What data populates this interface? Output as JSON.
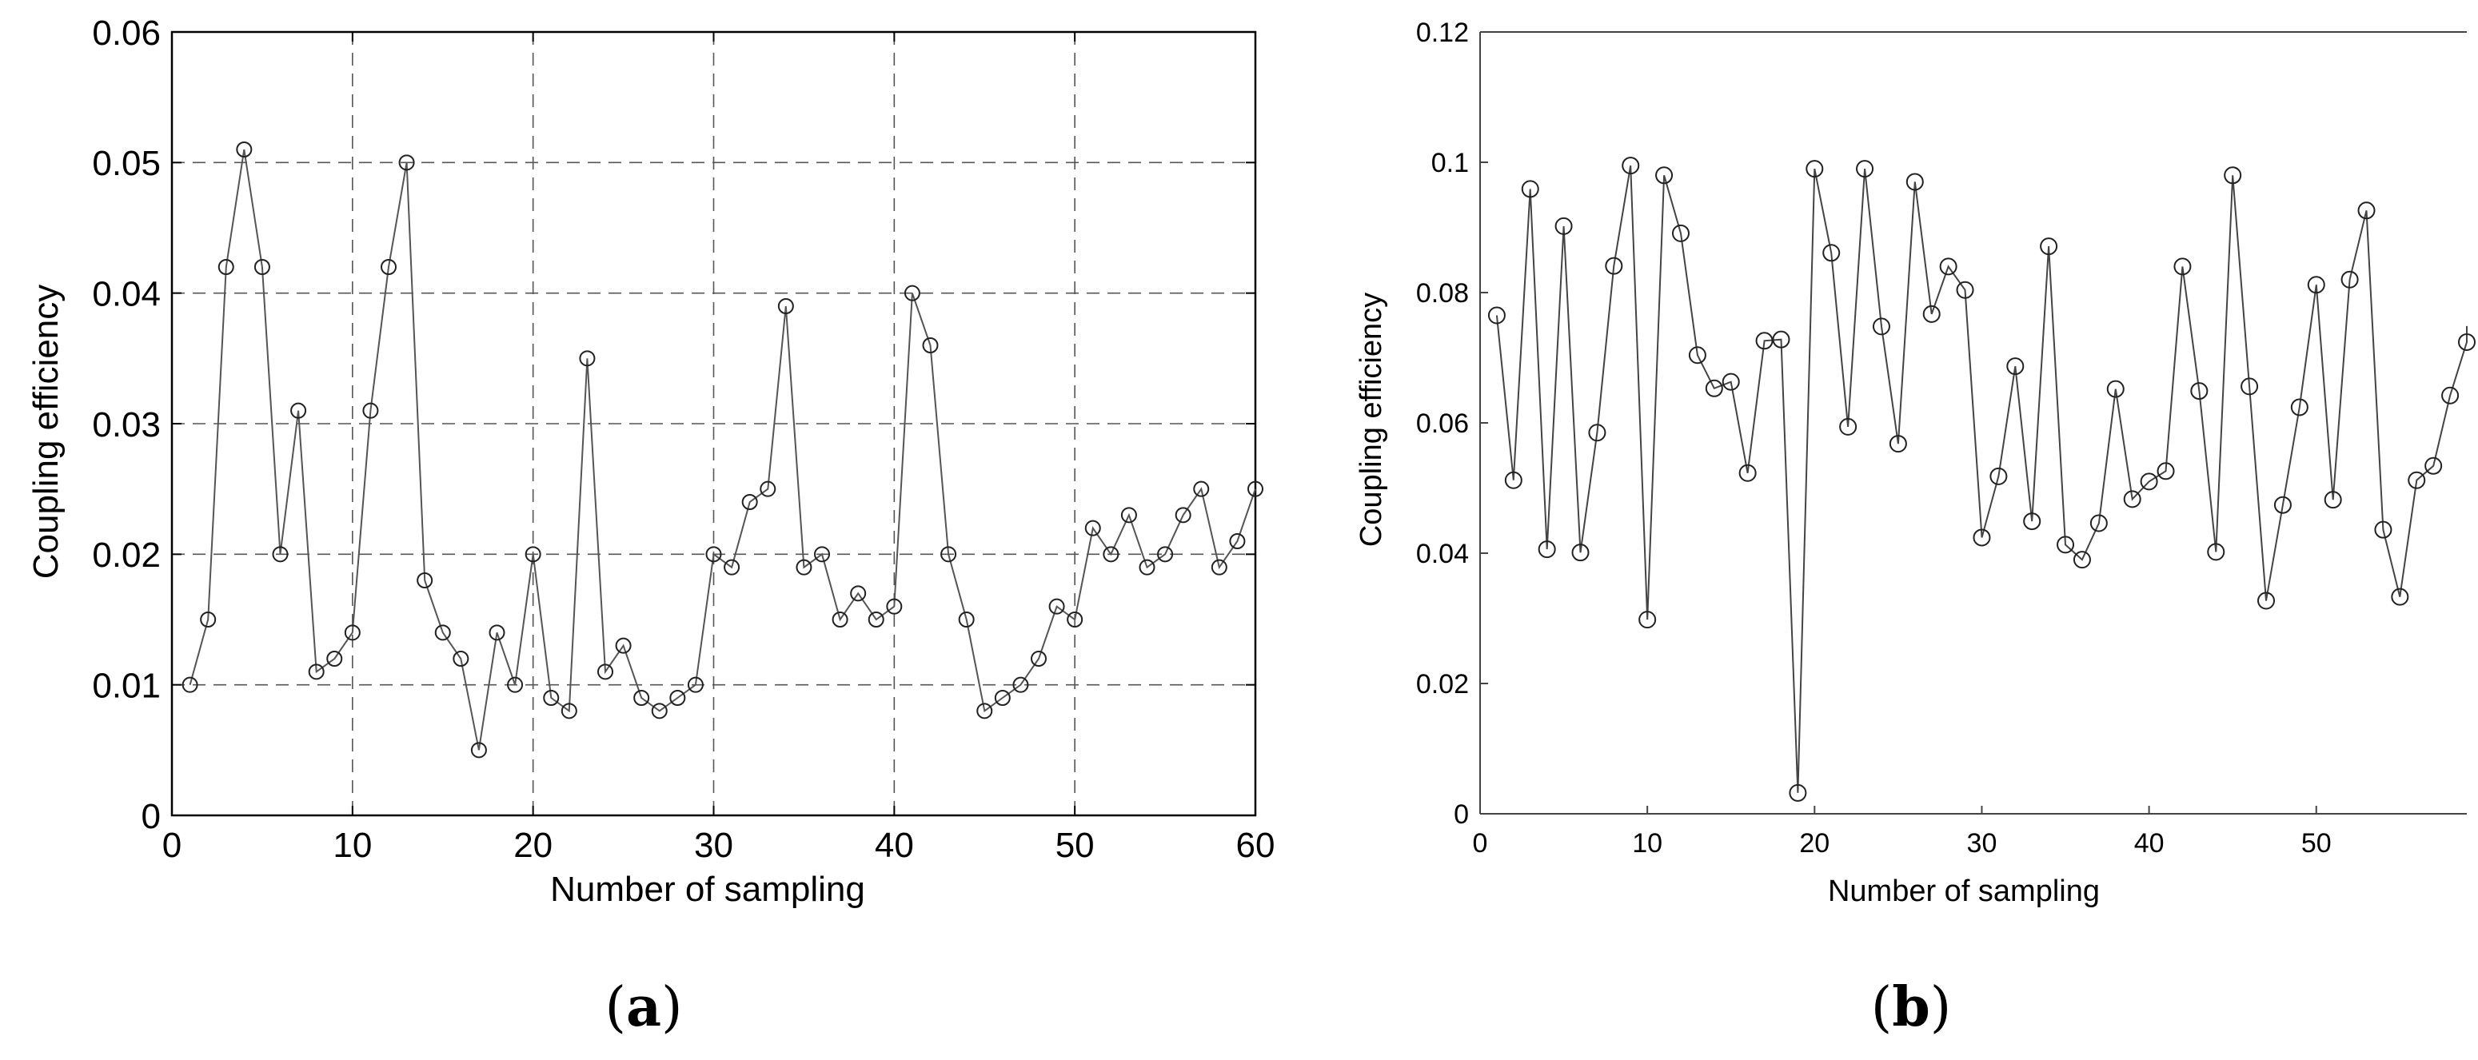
{
  "chart_data": [
    {
      "type": "line",
      "panel_label": "(a)",
      "panel_label_letter": "a",
      "xlabel": "Number of sampling",
      "ylabel": "Coupling efficiency",
      "xlim": [
        0,
        60
      ],
      "ylim": [
        0,
        0.06
      ],
      "xticks": [
        0,
        10,
        20,
        30,
        40,
        50,
        60
      ],
      "yticks": [
        0,
        0.01,
        0.02,
        0.03,
        0.04,
        0.05,
        0.06
      ],
      "xtick_labels": [
        "0",
        "10",
        "20",
        "30",
        "40",
        "50",
        "60"
      ],
      "ytick_labels": [
        "0",
        "0.01",
        "0.02",
        "0.03",
        "0.04",
        "0.05",
        "0.06"
      ],
      "grid": true,
      "marker": "circle",
      "line_color": "#555555",
      "x": [
        1,
        2,
        3,
        4,
        5,
        6,
        7,
        8,
        9,
        10,
        11,
        12,
        13,
        14,
        15,
        16,
        17,
        18,
        19,
        20,
        21,
        22,
        23,
        24,
        25,
        26,
        27,
        28,
        29,
        30,
        31,
        32,
        33,
        34,
        35,
        36,
        37,
        38,
        39,
        40,
        41,
        42,
        43,
        44,
        45,
        46,
        47,
        48,
        49,
        50,
        51,
        52,
        53,
        54,
        55,
        56,
        57,
        58,
        59,
        60
      ],
      "y": [
        0.01,
        0.015,
        0.042,
        0.051,
        0.042,
        0.02,
        0.031,
        0.011,
        0.012,
        0.014,
        0.031,
        0.042,
        0.05,
        0.018,
        0.014,
        0.012,
        0.005,
        0.014,
        0.01,
        0.02,
        0.009,
        0.008,
        0.035,
        0.011,
        0.013,
        0.009,
        0.008,
        0.009,
        0.01,
        0.02,
        0.019,
        0.024,
        0.025,
        0.039,
        0.019,
        0.02,
        0.015,
        0.017,
        0.015,
        0.016,
        0.04,
        0.036,
        0.02,
        0.015,
        0.008,
        0.009,
        0.01,
        0.012,
        0.016,
        0.015,
        0.022,
        0.02,
        0.023,
        0.019,
        0.02,
        0.023,
        0.025,
        0.019,
        0.021,
        0.025
      ]
    },
    {
      "type": "line",
      "panel_label": "(b)",
      "panel_label_letter": "b",
      "xlabel": "Number of sampling",
      "ylabel": "Coupling efficiency",
      "xlim": [
        0,
        59
      ],
      "ylim": [
        0,
        0.12
      ],
      "xticks": [
        0,
        10,
        20,
        30,
        40,
        50
      ],
      "yticks": [
        0,
        0.02,
        0.04,
        0.06,
        0.08,
        0.1,
        0.12
      ],
      "xtick_labels": [
        "0",
        "10",
        "20",
        "30",
        "40",
        "50"
      ],
      "ytick_labels": [
        "0",
        "0.02",
        "0.04",
        "0.06",
        "0.08",
        "0.1",
        "0.12"
      ],
      "grid": false,
      "marker": "circle",
      "line_color": "#444444",
      "x": [
        1,
        2,
        3,
        4,
        5,
        6,
        7,
        8,
        9,
        10,
        11,
        12,
        13,
        14,
        15,
        16,
        17,
        18,
        19,
        20,
        21,
        22,
        23,
        24,
        25,
        26,
        27,
        28,
        29,
        30,
        31,
        32,
        33,
        34,
        35,
        36,
        37,
        38,
        39,
        40,
        41,
        42,
        43,
        44,
        45,
        46,
        47,
        48,
        49,
        50,
        51,
        52,
        53,
        54,
        55,
        56,
        57,
        58,
        59
      ],
      "y": [
        0.0765,
        0.0512,
        0.0959,
        0.0406,
        0.0902,
        0.0401,
        0.0585,
        0.0841,
        0.0995,
        0.0298,
        0.098,
        0.0891,
        0.0704,
        0.0653,
        0.0663,
        0.0523,
        0.0726,
        0.0728,
        0.0032,
        0.099,
        0.0861,
        0.0594,
        0.099,
        0.0748,
        0.0568,
        0.097,
        0.0767,
        0.084,
        0.0804,
        0.0424,
        0.0518,
        0.0687,
        0.0449,
        0.0871,
        0.0413,
        0.039,
        0.0446,
        0.0652,
        0.0483,
        0.051,
        0.0526,
        0.084,
        0.0649,
        0.0402,
        0.098,
        0.0656,
        0.0327,
        0.0474,
        0.0624,
        0.0812,
        0.0482,
        0.082,
        0.0926,
        0.0436,
        0.0333,
        0.0512,
        0.0534,
        0.0642,
        0.0724
      ],
      "line_extends_to": 0.0765
    }
  ]
}
